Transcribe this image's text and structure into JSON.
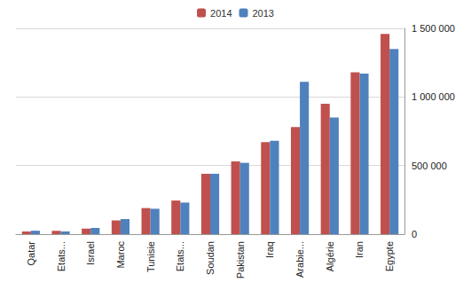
{
  "chart_data": {
    "type": "bar",
    "categories": [
      "Qatar",
      "Etats...",
      "Israel",
      "Maroc",
      "Tunisie",
      "Etats...",
      "Soudan",
      "Pakistan",
      "Iraq",
      "Arabie...",
      "Algérie",
      "Iran",
      "Egypte"
    ],
    "series": [
      {
        "name": "2014",
        "color": "#c0504d",
        "values": [
          20000,
          25000,
          40000,
          100000,
          190000,
          245000,
          440000,
          530000,
          670000,
          780000,
          950000,
          1180000,
          1460000
        ]
      },
      {
        "name": "2013",
        "color": "#4f81bd",
        "values": [
          25000,
          20000,
          45000,
          110000,
          185000,
          230000,
          440000,
          520000,
          680000,
          1110000,
          850000,
          1170000,
          1350000
        ]
      }
    ],
    "ylim": [
      0,
      1500000
    ],
    "yticks": [
      0,
      {
        "value": 500000,
        "label": "500 000"
      },
      {
        "value": 1000000,
        "label": "1 000 000"
      },
      {
        "value": 1500000,
        "label": "1 500 000"
      }
    ],
    "grid": true,
    "legend": "top"
  }
}
